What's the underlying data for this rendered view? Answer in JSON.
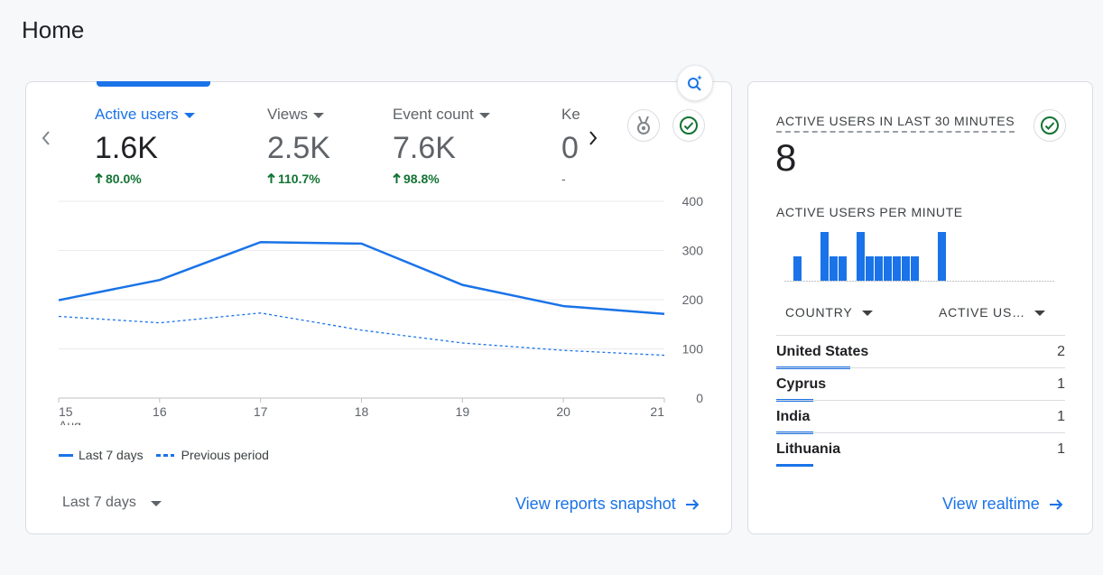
{
  "page": {
    "title": "Home"
  },
  "overview": {
    "metrics": [
      {
        "label": "Active users",
        "value": "1.6K",
        "change": "80.0%",
        "active": true
      },
      {
        "label": "Views",
        "value": "2.5K",
        "change": "110.7%"
      },
      {
        "label": "Event count",
        "value": "7.6K",
        "change": "98.8%"
      },
      {
        "label": "Ke",
        "value": "0",
        "change": "-"
      }
    ],
    "legend": {
      "current": "Last 7 days",
      "previous": "Previous period"
    },
    "date_range": "Last 7 days",
    "view_link": "View reports snapshot"
  },
  "chart_data": {
    "type": "line",
    "x": [
      "15",
      "16",
      "17",
      "18",
      "19",
      "20",
      "21"
    ],
    "x_sublabel": "Aug",
    "series": [
      {
        "name": "Last 7 days",
        "values": [
          199,
          240,
          317,
          314,
          230,
          187,
          171
        ],
        "style": "solid"
      },
      {
        "name": "Previous period",
        "values": [
          166,
          153,
          173,
          138,
          112,
          97,
          87
        ],
        "style": "dashed"
      }
    ],
    "y_ticks": [
      0,
      100,
      200,
      300,
      400
    ],
    "ylim": [
      0,
      400
    ],
    "grid": true,
    "color": "#1a73e8"
  },
  "realtime": {
    "title": "ACTIVE USERS IN LAST 30 MINUTES",
    "value": "8",
    "per_minute_label": "ACTIVE USERS PER MINUTE",
    "per_minute": [
      0,
      1,
      0,
      0,
      2,
      1,
      1,
      0,
      2,
      1,
      1,
      1,
      1,
      1,
      1,
      0,
      0,
      2,
      0,
      0,
      0,
      0,
      0,
      0,
      0,
      0,
      0,
      0,
      0,
      0
    ],
    "col_country": "COUNTRY",
    "col_users": "ACTIVE US…",
    "rows": [
      {
        "country": "United States",
        "value": "2",
        "share": 1.0
      },
      {
        "country": "Cyprus",
        "value": "1",
        "share": 0.5
      },
      {
        "country": "India",
        "value": "1",
        "share": 0.5
      },
      {
        "country": "Lithuania",
        "value": "1",
        "share": 0.5
      }
    ],
    "view_link": "View realtime"
  },
  "colors": {
    "accent": "#1a73e8",
    "positive": "#137333",
    "check": "#137333"
  }
}
